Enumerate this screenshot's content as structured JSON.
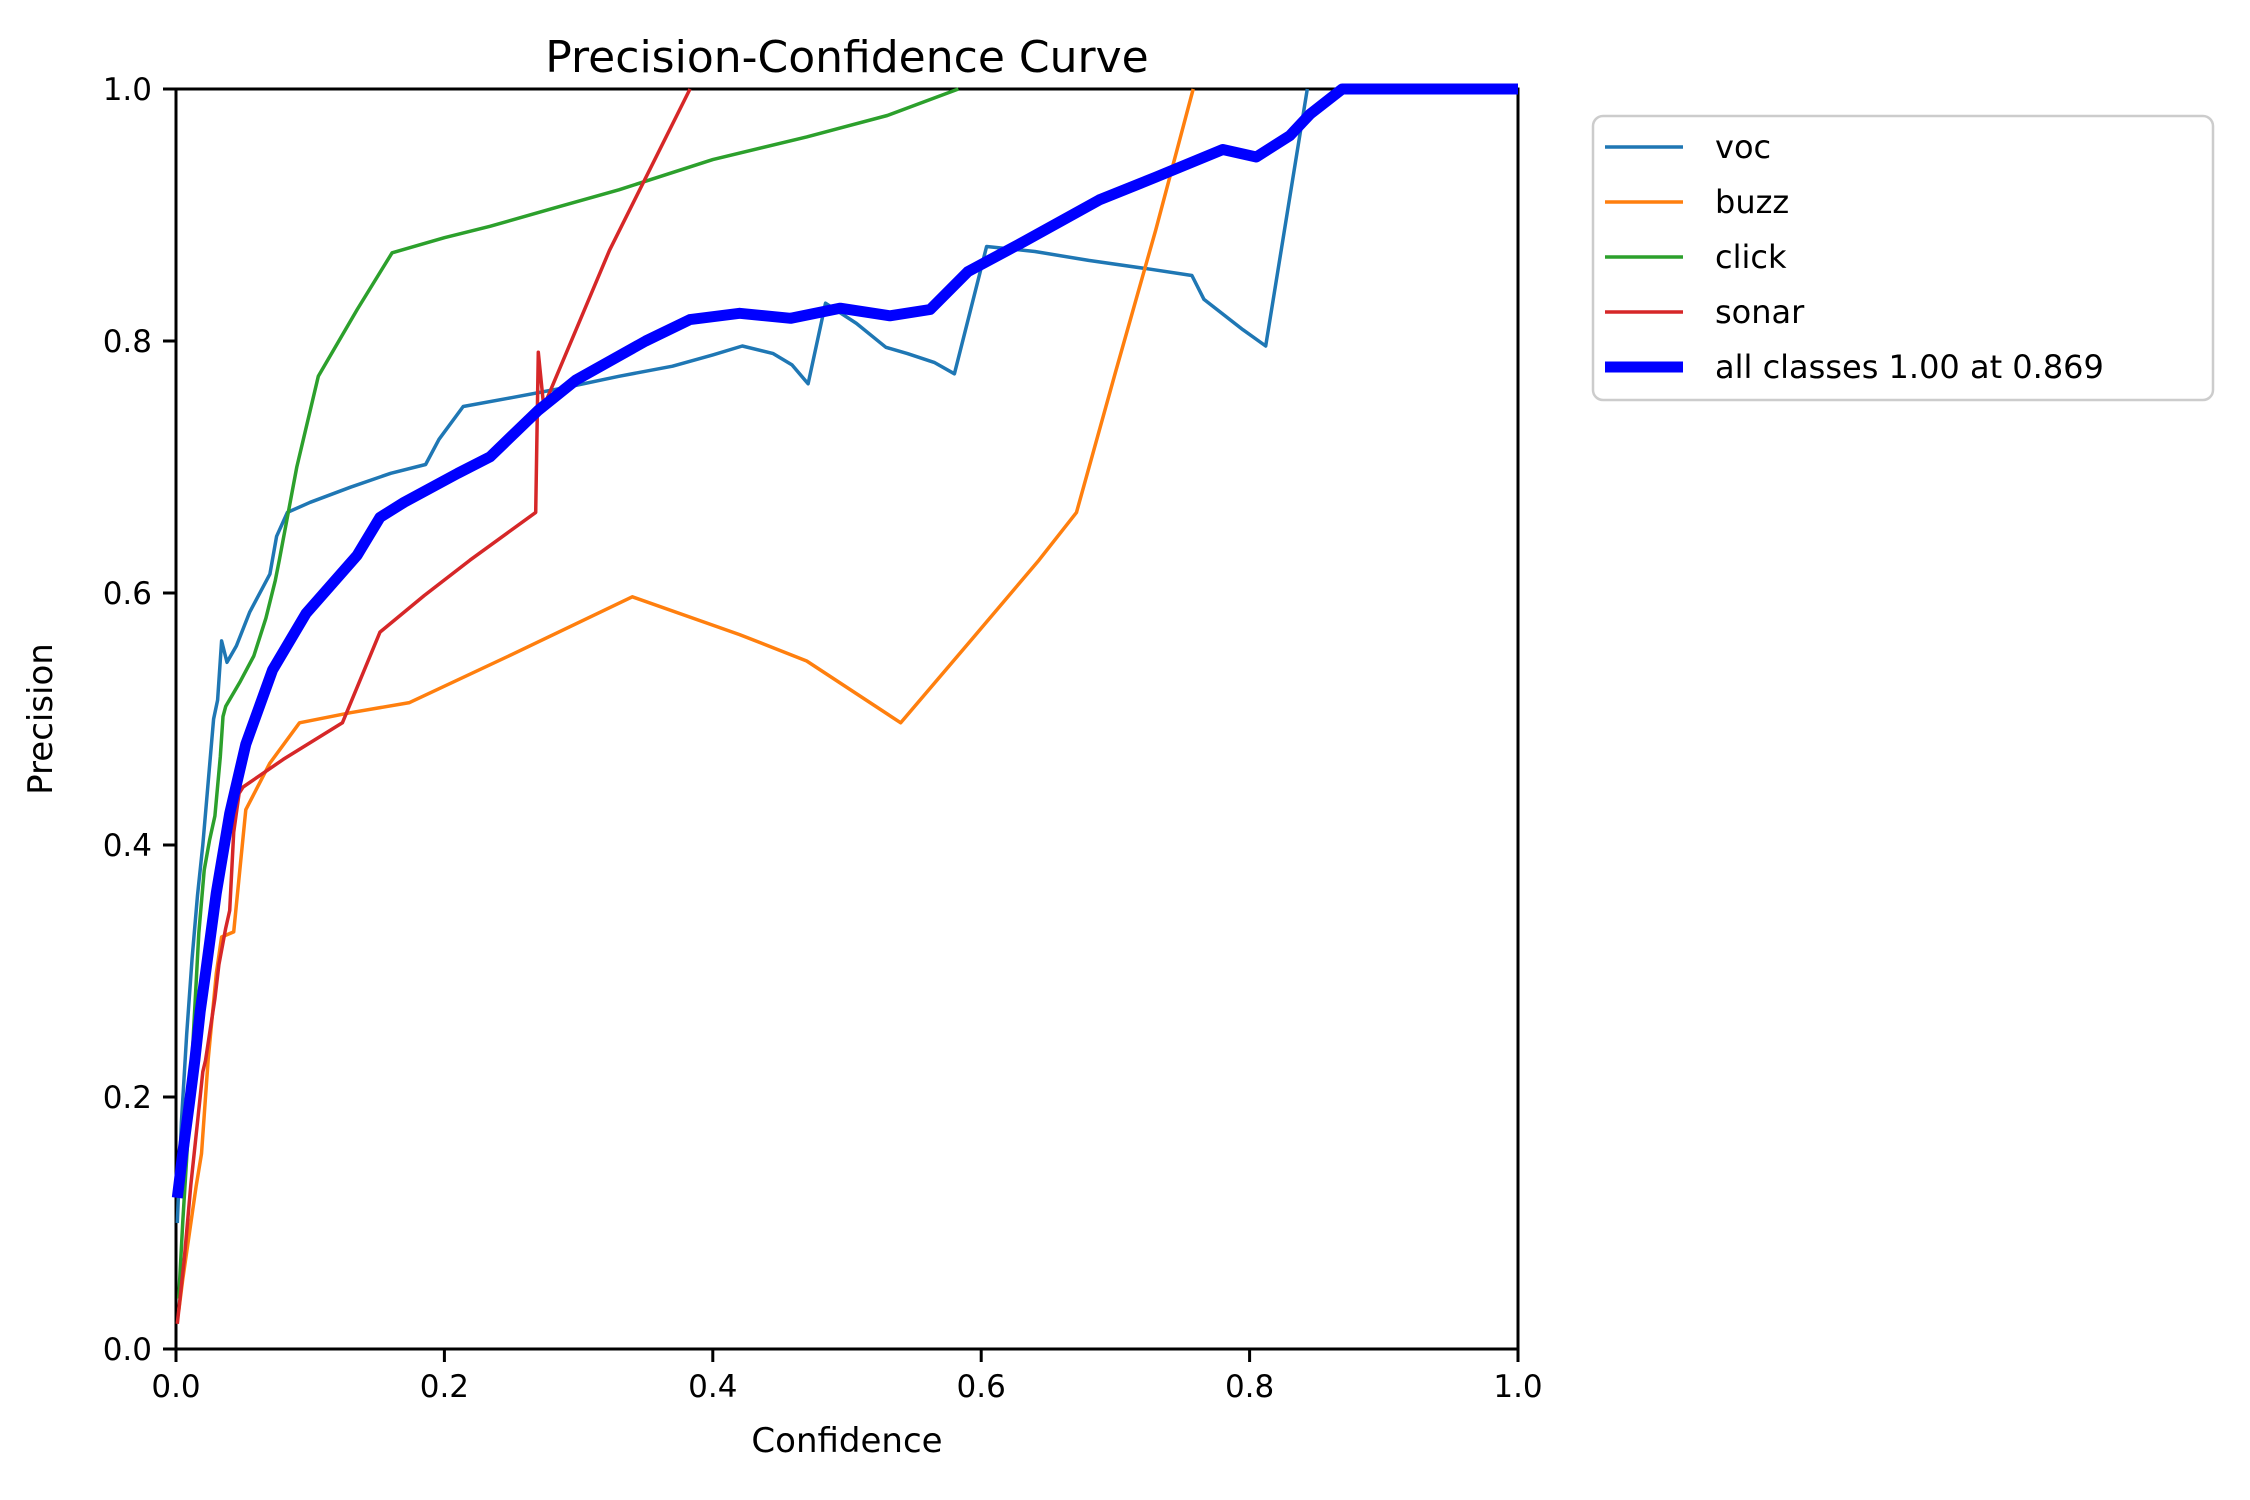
{
  "figure": {
    "background_color": "#ffffff",
    "kind": "matplotlib-line-figure"
  },
  "chart_data": {
    "type": "line",
    "title": "Precision-Confidence Curve",
    "xlabel": "Confidence",
    "ylabel": "Precision",
    "xlim": [
      0.0,
      1.0
    ],
    "ylim": [
      0.0,
      1.0
    ],
    "grid": false,
    "xticks": [
      0.0,
      0.2,
      0.4,
      0.6,
      0.8,
      1.0
    ],
    "xtick_labels": [
      "0.0",
      "0.2",
      "0.4",
      "0.6",
      "0.8",
      "1.0"
    ],
    "yticks": [
      0.0,
      0.2,
      0.4,
      0.6,
      0.8,
      1.0
    ],
    "ytick_labels": [
      "0.0",
      "0.2",
      "0.4",
      "0.6",
      "0.8",
      "1.0"
    ],
    "legend_position": "outside-upper-right",
    "series": [
      {
        "name": "voc",
        "color": "#1f77b4",
        "line_width": 3.5,
        "points": [
          [
            0.001,
            0.1
          ],
          [
            0.004,
            0.18
          ],
          [
            0.008,
            0.25
          ],
          [
            0.012,
            0.31
          ],
          [
            0.016,
            0.36
          ],
          [
            0.02,
            0.4
          ],
          [
            0.024,
            0.45
          ],
          [
            0.028,
            0.5
          ],
          [
            0.031,
            0.515
          ],
          [
            0.034,
            0.562
          ],
          [
            0.038,
            0.545
          ],
          [
            0.045,
            0.558
          ],
          [
            0.055,
            0.585
          ],
          [
            0.065,
            0.605
          ],
          [
            0.07,
            0.615
          ],
          [
            0.075,
            0.645
          ],
          [
            0.083,
            0.664
          ],
          [
            0.1,
            0.672
          ],
          [
            0.13,
            0.684
          ],
          [
            0.16,
            0.695
          ],
          [
            0.186,
            0.702
          ],
          [
            0.196,
            0.722
          ],
          [
            0.214,
            0.748
          ],
          [
            0.25,
            0.755
          ],
          [
            0.29,
            0.763
          ],
          [
            0.33,
            0.772
          ],
          [
            0.37,
            0.78
          ],
          [
            0.4,
            0.789
          ],
          [
            0.422,
            0.796
          ],
          [
            0.445,
            0.79
          ],
          [
            0.459,
            0.781
          ],
          [
            0.471,
            0.766
          ],
          [
            0.484,
            0.83
          ],
          [
            0.507,
            0.814
          ],
          [
            0.529,
            0.795
          ],
          [
            0.545,
            0.79
          ],
          [
            0.565,
            0.783
          ],
          [
            0.58,
            0.774
          ],
          [
            0.604,
            0.875
          ],
          [
            0.64,
            0.871
          ],
          [
            0.68,
            0.864
          ],
          [
            0.726,
            0.857
          ],
          [
            0.757,
            0.852
          ],
          [
            0.766,
            0.833
          ],
          [
            0.795,
            0.809
          ],
          [
            0.812,
            0.796
          ],
          [
            0.843,
            1.0
          ]
        ]
      },
      {
        "name": "buzz",
        "color": "#ff7f0e",
        "line_width": 3.5,
        "points": [
          [
            0.002,
            0.03
          ],
          [
            0.005,
            0.055
          ],
          [
            0.01,
            0.092
          ],
          [
            0.015,
            0.129
          ],
          [
            0.019,
            0.155
          ],
          [
            0.024,
            0.23
          ],
          [
            0.03,
            0.298
          ],
          [
            0.034,
            0.327
          ],
          [
            0.043,
            0.331
          ],
          [
            0.052,
            0.428
          ],
          [
            0.07,
            0.465
          ],
          [
            0.092,
            0.497
          ],
          [
            0.13,
            0.505
          ],
          [
            0.174,
            0.513
          ],
          [
            0.25,
            0.551
          ],
          [
            0.34,
            0.597
          ],
          [
            0.42,
            0.567
          ],
          [
            0.47,
            0.546
          ],
          [
            0.54,
            0.497
          ],
          [
            0.6,
            0.572
          ],
          [
            0.643,
            0.626
          ],
          [
            0.671,
            0.664
          ],
          [
            0.7,
            0.775
          ],
          [
            0.73,
            0.888
          ],
          [
            0.758,
            1.0
          ]
        ]
      },
      {
        "name": "click",
        "color": "#2ca02c",
        "line_width": 3.5,
        "points": [
          [
            0.002,
            0.04
          ],
          [
            0.005,
            0.1
          ],
          [
            0.009,
            0.17
          ],
          [
            0.013,
            0.25
          ],
          [
            0.017,
            0.33
          ],
          [
            0.021,
            0.38
          ],
          [
            0.025,
            0.404
          ],
          [
            0.029,
            0.423
          ],
          [
            0.033,
            0.47
          ],
          [
            0.035,
            0.502
          ],
          [
            0.037,
            0.51
          ],
          [
            0.048,
            0.53
          ],
          [
            0.058,
            0.55
          ],
          [
            0.067,
            0.58
          ],
          [
            0.074,
            0.61
          ],
          [
            0.077,
            0.626
          ],
          [
            0.09,
            0.7
          ],
          [
            0.106,
            0.772
          ],
          [
            0.135,
            0.825
          ],
          [
            0.161,
            0.87
          ],
          [
            0.2,
            0.882
          ],
          [
            0.234,
            0.891
          ],
          [
            0.28,
            0.905
          ],
          [
            0.33,
            0.92
          ],
          [
            0.4,
            0.944
          ],
          [
            0.47,
            0.962
          ],
          [
            0.53,
            0.979
          ],
          [
            0.583,
            1.0
          ]
        ]
      },
      {
        "name": "sonar",
        "color": "#d62728",
        "line_width": 3.5,
        "points": [
          [
            0.001,
            0.02
          ],
          [
            0.006,
            0.07
          ],
          [
            0.011,
            0.13
          ],
          [
            0.016,
            0.18
          ],
          [
            0.02,
            0.22
          ],
          [
            0.022,
            0.229
          ],
          [
            0.029,
            0.278
          ],
          [
            0.032,
            0.305
          ],
          [
            0.037,
            0.334
          ],
          [
            0.04,
            0.348
          ],
          [
            0.043,
            0.41
          ],
          [
            0.047,
            0.441
          ],
          [
            0.05,
            0.446
          ],
          [
            0.08,
            0.468
          ],
          [
            0.124,
            0.497
          ],
          [
            0.152,
            0.569
          ],
          [
            0.185,
            0.598
          ],
          [
            0.219,
            0.626
          ],
          [
            0.268,
            0.664
          ],
          [
            0.27,
            0.791
          ],
          [
            0.274,
            0.748
          ],
          [
            0.323,
            0.872
          ],
          [
            0.383,
            1.0
          ]
        ]
      },
      {
        "name": "all classes 1.00 at 0.869",
        "color": "#0000ff",
        "line_width": 11,
        "points": [
          [
            0.001,
            0.12
          ],
          [
            0.005,
            0.155
          ],
          [
            0.01,
            0.195
          ],
          [
            0.014,
            0.229
          ],
          [
            0.018,
            0.268
          ],
          [
            0.022,
            0.298
          ],
          [
            0.03,
            0.362
          ],
          [
            0.04,
            0.425
          ],
          [
            0.052,
            0.48
          ],
          [
            0.072,
            0.539
          ],
          [
            0.097,
            0.584
          ],
          [
            0.135,
            0.63
          ],
          [
            0.152,
            0.66
          ],
          [
            0.17,
            0.672
          ],
          [
            0.21,
            0.695
          ],
          [
            0.234,
            0.708
          ],
          [
            0.27,
            0.745
          ],
          [
            0.298,
            0.769
          ],
          [
            0.35,
            0.8
          ],
          [
            0.383,
            0.817
          ],
          [
            0.42,
            0.822
          ],
          [
            0.458,
            0.818
          ],
          [
            0.495,
            0.826
          ],
          [
            0.532,
            0.82
          ],
          [
            0.562,
            0.825
          ],
          [
            0.59,
            0.855
          ],
          [
            0.632,
            0.879
          ],
          [
            0.688,
            0.912
          ],
          [
            0.73,
            0.93
          ],
          [
            0.78,
            0.952
          ],
          [
            0.805,
            0.946
          ],
          [
            0.83,
            0.963
          ],
          [
            0.845,
            0.98
          ],
          [
            0.869,
            1.0
          ],
          [
            1.0,
            1.0
          ]
        ]
      }
    ]
  },
  "legend": {
    "border_color": "#cccccc",
    "background_color": "#ffffff"
  },
  "axes": {
    "spine_color": "#000000",
    "tick_color": "#000000"
  }
}
